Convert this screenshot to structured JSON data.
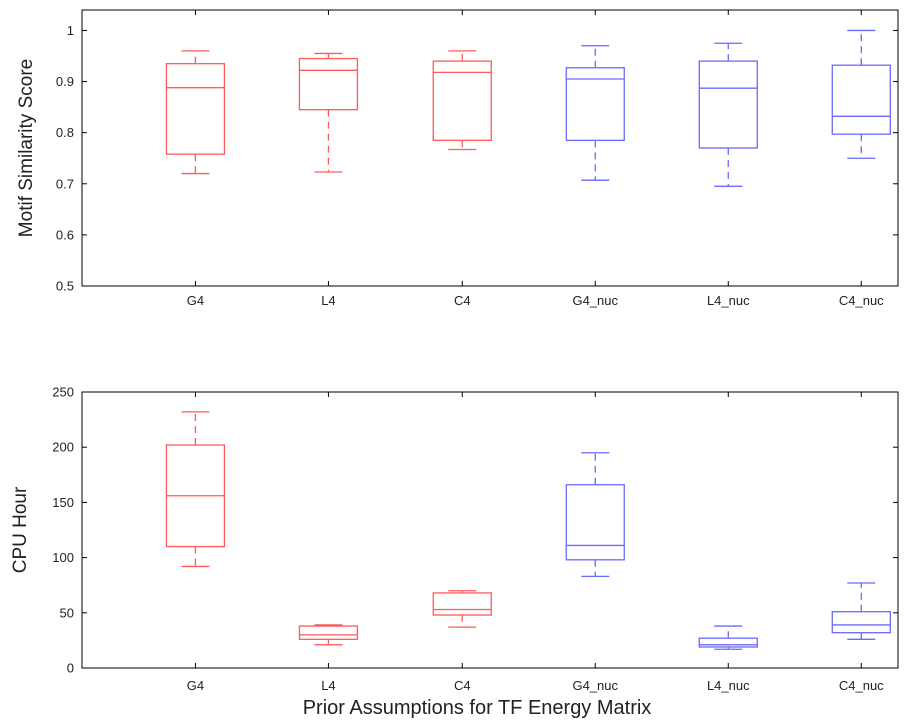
{
  "figure": {
    "xlabel": "Prior Assumptions for TF Energy Matrix"
  },
  "colors": {
    "red": "#ff5a5a",
    "blue": "#6a6aff",
    "axis": "#000000"
  },
  "chart_data": [
    {
      "type": "box",
      "ylabel": "Motif Similarity Score",
      "ylim": [
        0.5,
        1.04
      ],
      "yticks": [
        0.5,
        0.6,
        0.7,
        0.8,
        0.9,
        1
      ],
      "ytick_labels": [
        "0.5",
        "0.6",
        "0.7",
        "0.8",
        "0.9",
        "1"
      ],
      "categories": [
        "G4",
        "L4",
        "C4",
        "G4_nuc",
        "L4_nuc",
        "C4_nuc"
      ],
      "colors": [
        "red",
        "red",
        "red",
        "blue",
        "blue",
        "blue"
      ],
      "boxes": [
        {
          "min": 0.72,
          "q1": 0.758,
          "median": 0.888,
          "q3": 0.935,
          "max": 0.96
        },
        {
          "min": 0.723,
          "q1": 0.845,
          "median": 0.922,
          "q3": 0.945,
          "max": 0.955
        },
        {
          "min": 0.767,
          "q1": 0.785,
          "median": 0.918,
          "q3": 0.94,
          "max": 0.96
        },
        {
          "min": 0.707,
          "q1": 0.785,
          "median": 0.905,
          "q3": 0.927,
          "max": 0.97
        },
        {
          "min": 0.695,
          "q1": 0.77,
          "median": 0.887,
          "q3": 0.94,
          "max": 0.975
        },
        {
          "min": 0.75,
          "q1": 0.797,
          "median": 0.832,
          "q3": 0.932,
          "max": 1.0
        }
      ]
    },
    {
      "type": "box",
      "ylabel": "CPU Hour",
      "ylim": [
        0,
        250
      ],
      "yticks": [
        0,
        50,
        100,
        150,
        200,
        250
      ],
      "ytick_labels": [
        "0",
        "50",
        "100",
        "150",
        "200",
        "250"
      ],
      "categories": [
        "G4",
        "L4",
        "C4",
        "G4_nuc",
        "L4_nuc",
        "C4_nuc"
      ],
      "colors": [
        "red",
        "red",
        "red",
        "blue",
        "blue",
        "blue"
      ],
      "boxes": [
        {
          "min": 92,
          "q1": 110,
          "median": 156,
          "q3": 202,
          "max": 232
        },
        {
          "min": 21,
          "q1": 26,
          "median": 30,
          "q3": 38,
          "max": 39
        },
        {
          "min": 37,
          "q1": 48,
          "median": 53,
          "q3": 68,
          "max": 70
        },
        {
          "min": 83,
          "q1": 98,
          "median": 111,
          "q3": 166,
          "max": 195
        },
        {
          "min": 17,
          "q1": 19,
          "median": 21,
          "q3": 27,
          "max": 38
        },
        {
          "min": 26,
          "q1": 32,
          "median": 39,
          "q3": 51,
          "max": 77
        }
      ]
    }
  ]
}
